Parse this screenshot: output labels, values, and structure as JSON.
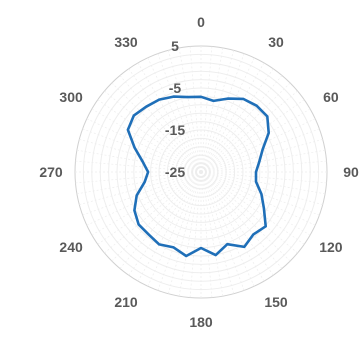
{
  "chart_data": {
    "type": "polar-line",
    "title": "",
    "angle_unit": "degrees",
    "angular_tick_labels": [
      "0",
      "30",
      "60",
      "90",
      "120",
      "150",
      "180",
      "210",
      "240",
      "270",
      "300",
      "330"
    ],
    "radial_tick_labels": [
      "5",
      "-5",
      "-15",
      "-25"
    ],
    "radial_range": [
      -25,
      5
    ],
    "grid": true,
    "legend": "none",
    "series": [
      {
        "color": "#1f6fb8",
        "points": [
          [
            0,
            -7.1
          ],
          [
            10,
            -7.8
          ],
          [
            20,
            -6.4
          ],
          [
            30,
            -4.9
          ],
          [
            40,
            -4.4
          ],
          [
            50,
            -4.4
          ],
          [
            60,
            -6.4
          ],
          [
            70,
            -9.4
          ],
          [
            80,
            -10.9
          ],
          [
            90,
            -11.9
          ],
          [
            100,
            -11.7
          ],
          [
            110,
            -9.7
          ],
          [
            120,
            -7.7
          ],
          [
            130,
            -4.9
          ],
          [
            140,
            -5.6
          ],
          [
            150,
            -4.4
          ],
          [
            160,
            -6.7
          ],
          [
            170,
            -4.9
          ],
          [
            180,
            -6.9
          ],
          [
            190,
            -4.7
          ],
          [
            200,
            -5.9
          ],
          [
            210,
            -5.1
          ],
          [
            220,
            -5.6
          ],
          [
            230,
            -5.6
          ],
          [
            240,
            -6.7
          ],
          [
            250,
            -8.7
          ],
          [
            260,
            -11.4
          ],
          [
            270,
            -12.4
          ],
          [
            280,
            -10.9
          ],
          [
            290,
            -8.2
          ],
          [
            300,
            -4.9
          ],
          [
            310,
            -4.1
          ],
          [
            320,
            -4.7
          ],
          [
            330,
            -5.1
          ],
          [
            340,
            -5.9
          ],
          [
            350,
            -6.9
          ]
        ]
      }
    ]
  }
}
